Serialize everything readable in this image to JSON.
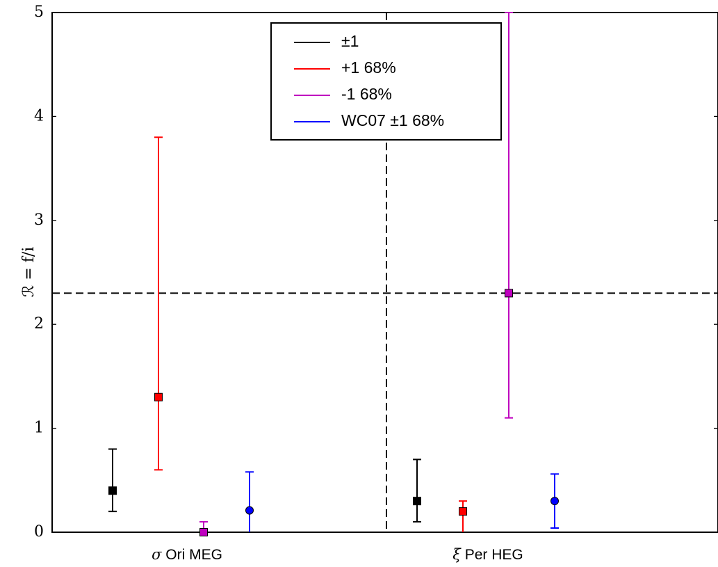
{
  "chart_data": {
    "type": "scatter",
    "ylabel": "ℛ = f/i",
    "ylim": [
      0,
      5
    ],
    "yticks": [
      "0",
      "1",
      "2",
      "3",
      "4",
      "5"
    ],
    "categories": [
      {
        "symbol": "σ",
        "text": " Ori MEG"
      },
      {
        "symbol": "ξ",
        "text": " Per HEG"
      }
    ],
    "reference_lines": {
      "horizontal_y": 2.3,
      "vertical": "between categories"
    },
    "series": [
      {
        "name": "±1",
        "color": "#000000",
        "marker": "square",
        "points": [
          {
            "category": 0,
            "y": 0.4,
            "low": 0.2,
            "high": 0.8
          },
          {
            "category": 1,
            "y": 0.3,
            "low": 0.1,
            "high": 0.7
          }
        ]
      },
      {
        "name": "+1 68%",
        "color": "#ff0000",
        "marker": "square",
        "points": [
          {
            "category": 0,
            "y": 1.3,
            "low": 0.6,
            "high": 3.8
          },
          {
            "category": 1,
            "y": 0.2,
            "low": 0.0,
            "high": 0.3
          }
        ]
      },
      {
        "name": "-1 68%",
        "color": "#bf00bf",
        "marker": "square",
        "points": [
          {
            "category": 0,
            "y": 0.0,
            "low": 0.0,
            "high": 0.1
          },
          {
            "category": 1,
            "y": 2.3,
            "low": 1.1,
            "high": 5.0
          }
        ]
      },
      {
        "name": "WC07 ±1 68%",
        "color": "#0000ff",
        "marker": "circle",
        "points": [
          {
            "category": 0,
            "y": 0.21,
            "low": 0.0,
            "high": 0.58
          },
          {
            "category": 1,
            "y": 0.3,
            "low": 0.04,
            "high": 0.56
          }
        ]
      }
    ],
    "legend": {
      "location": "upper-center",
      "entries": [
        "±1",
        "+1 68%",
        "-1 68%",
        "WC07 ±1 68%"
      ]
    }
  }
}
